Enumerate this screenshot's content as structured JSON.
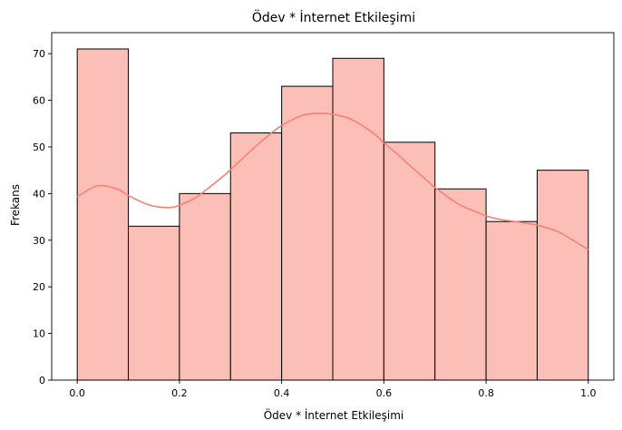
{
  "chart_data": {
    "type": "bar",
    "title": "Ödev * İnternet Etkileşimi",
    "xlabel": "Ödev * İnternet Etkileşimi",
    "ylabel": "Frekans",
    "bin_edges": [
      0.0,
      0.1,
      0.2,
      0.3,
      0.4,
      0.5,
      0.6,
      0.7,
      0.8,
      0.9,
      1.0
    ],
    "values": [
      71,
      33,
      40,
      53,
      63,
      69,
      51,
      41,
      34,
      45
    ],
    "xlim": [
      -0.05,
      1.05
    ],
    "ylim": [
      0,
      74.5
    ],
    "xticks": [
      0.0,
      0.2,
      0.4,
      0.6,
      0.8,
      1.0
    ],
    "xtick_labels": [
      "0.0",
      "0.2",
      "0.4",
      "0.6",
      "0.8",
      "1.0"
    ],
    "yticks": [
      0,
      10,
      20,
      30,
      40,
      50,
      60,
      70
    ],
    "ytick_labels": [
      "0",
      "10",
      "20",
      "30",
      "40",
      "50",
      "60",
      "70"
    ],
    "kde": {
      "x": [
        0.0,
        0.03,
        0.05,
        0.08,
        0.1,
        0.13,
        0.15,
        0.18,
        0.2,
        0.23,
        0.25,
        0.28,
        0.3,
        0.33,
        0.35,
        0.38,
        0.4,
        0.43,
        0.45,
        0.48,
        0.5,
        0.53,
        0.55,
        0.58,
        0.6,
        0.63,
        0.65,
        0.68,
        0.7,
        0.73,
        0.75,
        0.78,
        0.8,
        0.83,
        0.85,
        0.88,
        0.9,
        0.93,
        0.95,
        0.98,
        1.0
      ],
      "y": [
        39.3,
        41.3,
        41.7,
        40.9,
        39.6,
        38.0,
        37.3,
        37.0,
        37.5,
        39.0,
        40.6,
        43.2,
        45.1,
        48.2,
        50.2,
        53.0,
        54.6,
        56.3,
        57.0,
        57.2,
        57.0,
        56.2,
        55.1,
        52.9,
        50.9,
        48.1,
        46.1,
        43.2,
        41.3,
        38.9,
        37.5,
        36.1,
        35.2,
        34.4,
        34.1,
        33.6,
        33.2,
        32.3,
        31.3,
        29.3,
        28.0
      ]
    },
    "colors": {
      "bar_fill": "#fbbfb8",
      "bar_edge": "#000000",
      "kde_line": "#fa8072"
    },
    "grid": false,
    "legend": "none"
  }
}
